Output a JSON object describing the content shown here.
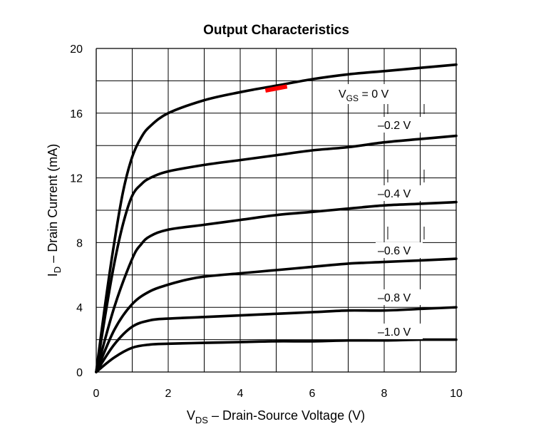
{
  "chart_data": {
    "type": "line",
    "title": "Output Characteristics",
    "xlabel": {
      "main": "V",
      "sub": "DS",
      "rest": " – Drain-Source Voltage (V)"
    },
    "ylabel": {
      "main": "I",
      "sub": "D",
      "rest": " – Drain Current (mA)"
    },
    "xlim": [
      0,
      10
    ],
    "ylim": [
      0,
      20
    ],
    "x_ticks": [
      "0",
      "2",
      "4",
      "6",
      "8",
      "10"
    ],
    "y_ticks": [
      "0",
      "4",
      "8",
      "12",
      "16",
      "20"
    ],
    "grid": true,
    "line_color": "#000000",
    "highlight_color": "#ff0000",
    "series": [
      {
        "name": "0 V",
        "x": [
          0,
          0.25,
          0.5,
          0.75,
          1.0,
          1.25,
          1.5,
          2.0,
          3.0,
          4.0,
          5.0,
          6.0,
          7.0,
          8.0,
          9.0,
          10.0
        ],
        "y": [
          0,
          4.2,
          8.0,
          11.2,
          13.3,
          14.5,
          15.2,
          16.0,
          16.8,
          17.3,
          17.7,
          18.1,
          18.4,
          18.6,
          18.8,
          19.0
        ]
      },
      {
        "name": "–0.2 V",
        "x": [
          0,
          0.25,
          0.5,
          0.75,
          1.0,
          1.25,
          1.5,
          2.0,
          3.0,
          4.0,
          5.0,
          6.0,
          7.0,
          8.0,
          9.0,
          10.0
        ],
        "y": [
          0,
          3.5,
          6.7,
          9.2,
          10.9,
          11.6,
          12.0,
          12.4,
          12.8,
          13.1,
          13.4,
          13.7,
          13.9,
          14.2,
          14.4,
          14.6
        ]
      },
      {
        "name": "–0.4 V",
        "x": [
          0,
          0.5,
          1.0,
          1.25,
          1.5,
          2.0,
          3.0,
          4.0,
          5.0,
          6.0,
          7.0,
          8.0,
          9.0,
          10.0
        ],
        "y": [
          0,
          4.0,
          7.0,
          7.9,
          8.4,
          8.8,
          9.1,
          9.4,
          9.7,
          9.9,
          10.1,
          10.3,
          10.4,
          10.5
        ]
      },
      {
        "name": "–0.6 V",
        "x": [
          0,
          0.5,
          1.0,
          1.5,
          2.0,
          2.5,
          3.0,
          4.0,
          5.0,
          6.0,
          7.0,
          8.0,
          9.0,
          10.0
        ],
        "y": [
          0,
          2.6,
          4.2,
          5.0,
          5.4,
          5.7,
          5.9,
          6.1,
          6.3,
          6.5,
          6.7,
          6.8,
          6.9,
          7.0
        ]
      },
      {
        "name": "–0.8 V",
        "x": [
          0,
          0.5,
          1.0,
          1.5,
          2.0,
          3.0,
          4.0,
          5.0,
          6.0,
          7.0,
          8.0,
          9.0,
          10.0
        ],
        "y": [
          0,
          1.7,
          2.8,
          3.2,
          3.3,
          3.4,
          3.5,
          3.6,
          3.7,
          3.8,
          3.8,
          3.9,
          4.0
        ]
      },
      {
        "name": "–1.0 V",
        "x": [
          0,
          0.5,
          1.0,
          1.5,
          2.0,
          3.0,
          4.0,
          5.0,
          6.0,
          7.0,
          8.0,
          9.0,
          10.0
        ],
        "y": [
          0,
          0.9,
          1.5,
          1.7,
          1.75,
          1.8,
          1.85,
          1.9,
          1.9,
          1.95,
          1.95,
          2.0,
          2.0
        ]
      }
    ],
    "highlight": {
      "x": [
        4.7,
        5.3
      ],
      "y": [
        17.4,
        17.65
      ]
    },
    "annotations": [
      {
        "series": "0 V",
        "main": "V",
        "sub": "GS",
        "rest": " = 0 V"
      },
      {
        "series": "–0.2 V",
        "text": "–0.2 V"
      },
      {
        "series": "–0.4 V",
        "text": "–0.4 V"
      },
      {
        "series": "–0.6 V",
        "text": "–0.6 V"
      },
      {
        "series": "–0.8 V",
        "text": "–0.8 V"
      },
      {
        "series": "–1.0 V",
        "text": "–1.0 V"
      }
    ]
  }
}
